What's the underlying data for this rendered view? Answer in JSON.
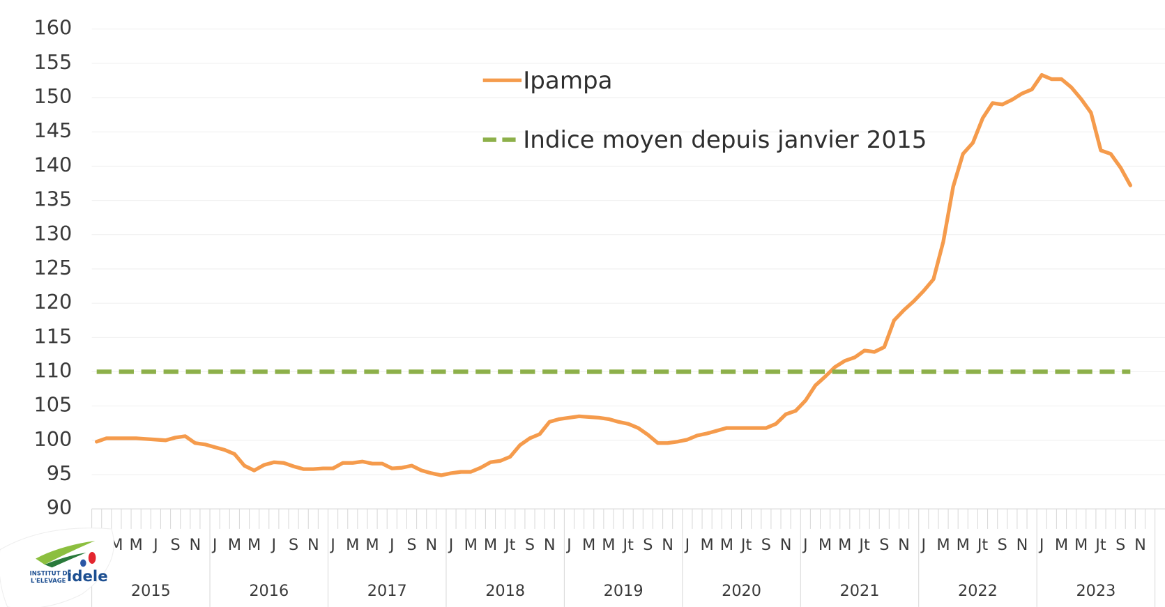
{
  "chart_data": {
    "type": "line",
    "categories": [
      null,
      null,
      "M",
      null,
      "M",
      null,
      "J",
      null,
      "S",
      null,
      "N",
      null,
      "J",
      null,
      "M",
      null,
      "M",
      null,
      "J",
      null,
      "S",
      null,
      "N",
      null,
      "J",
      null,
      "M",
      null,
      "M",
      null,
      "J",
      null,
      "S",
      null,
      "N",
      null,
      "J",
      null,
      "M",
      null,
      "M",
      null,
      "Jt",
      null,
      "S",
      null,
      "N",
      null,
      "J",
      null,
      "M",
      null,
      "M",
      null,
      "Jt",
      null,
      "S",
      null,
      "N",
      null,
      "J",
      null,
      "M",
      null,
      "M",
      null,
      "Jt",
      null,
      "S",
      null,
      "N",
      null,
      "J",
      null,
      "M",
      null,
      "M",
      null,
      "Jt",
      null,
      "S",
      null,
      "N",
      null,
      "J",
      null,
      "M",
      null,
      "M",
      null,
      "Jt",
      null,
      "S",
      null,
      "N",
      null,
      "J",
      null,
      "M",
      null,
      "M",
      null,
      "Jt",
      null,
      "S",
      null,
      "N",
      null
    ],
    "years": [
      "2015",
      "2016",
      "2017",
      "2018",
      "2019",
      "2020",
      "2021",
      "2022",
      "2023"
    ],
    "series": [
      {
        "name": "Ipampa",
        "color": "#f59b4c",
        "dashed": false,
        "values": [
          99.8,
          100.3,
          100.3,
          100.3,
          100.3,
          100.2,
          100.1,
          100.0,
          100.4,
          100.6,
          99.6,
          99.4,
          99.0,
          98.6,
          98.0,
          96.3,
          95.6,
          96.4,
          96.8,
          96.7,
          96.2,
          95.8,
          95.8,
          95.9,
          95.9,
          96.7,
          96.7,
          96.9,
          96.6,
          96.6,
          95.9,
          96.0,
          96.3,
          95.6,
          95.2,
          94.9,
          95.2,
          95.4,
          95.4,
          96.0,
          96.8,
          97.0,
          97.6,
          99.3,
          100.3,
          100.9,
          102.7,
          103.1,
          103.3,
          103.5,
          103.4,
          103.3,
          103.1,
          102.7,
          102.4,
          101.8,
          100.8,
          99.6,
          99.6,
          99.8,
          100.1,
          100.7,
          101.0,
          101.4,
          101.8,
          101.8,
          101.8,
          101.8,
          101.8,
          102.4,
          103.8,
          104.3,
          105.8,
          108.0,
          109.3,
          110.7,
          111.6,
          112.1,
          113.1,
          112.9,
          113.6,
          117.5,
          119.0,
          120.3,
          121.8,
          123.5,
          129.0,
          137.0,
          141.8,
          143.4,
          147.0,
          149.2,
          149.0,
          149.7,
          150.6,
          151.2,
          153.3,
          152.7,
          152.7,
          151.5,
          149.8,
          147.8,
          142.3,
          141.8,
          139.8,
          137.2,
          null,
          null
        ]
      },
      {
        "name": "Indice moyen depuis janvier 2015",
        "color": "#8db04a",
        "dashed": true,
        "values": [
          110,
          110,
          110,
          110,
          110,
          110,
          110,
          110,
          110,
          110,
          110,
          110,
          110,
          110,
          110,
          110,
          110,
          110,
          110,
          110,
          110,
          110,
          110,
          110,
          110,
          110,
          110,
          110,
          110,
          110,
          110,
          110,
          110,
          110,
          110,
          110,
          110,
          110,
          110,
          110,
          110,
          110,
          110,
          110,
          110,
          110,
          110,
          110,
          110,
          110,
          110,
          110,
          110,
          110,
          110,
          110,
          110,
          110,
          110,
          110,
          110,
          110,
          110,
          110,
          110,
          110,
          110,
          110,
          110,
          110,
          110,
          110,
          110,
          110,
          110,
          110,
          110,
          110,
          110,
          110,
          110,
          110,
          110,
          110,
          110,
          110,
          110,
          110,
          110,
          110,
          110,
          110,
          110,
          110,
          110,
          110,
          110,
          110,
          110,
          110,
          110,
          110,
          110,
          110,
          110,
          110,
          null,
          null
        ]
      }
    ],
    "ylim": [
      90,
      160
    ],
    "yticks": [
      90,
      95,
      100,
      105,
      110,
      115,
      120,
      125,
      130,
      135,
      140,
      145,
      150,
      155,
      160
    ],
    "grid": true
  },
  "logo": {
    "line1": "INSTITUT DE",
    "line2": "L'ELEVAGE",
    "brand": "idele"
  }
}
